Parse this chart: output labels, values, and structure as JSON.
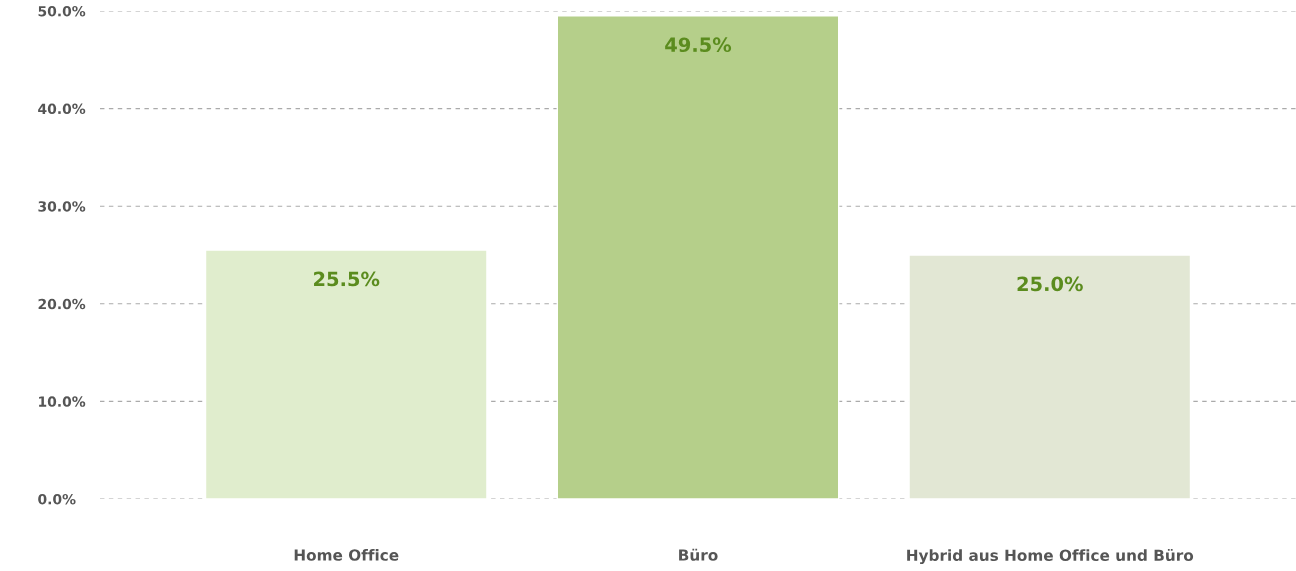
{
  "chart_data": {
    "type": "bar",
    "categories": [
      "Home Office",
      "Büro",
      "Hybrid aus Home Office und Büro"
    ],
    "values": [
      25.5,
      49.5,
      25.0
    ],
    "colors": [
      "#e0edcd",
      "#b5cf8a",
      "#e2e7d4"
    ],
    "value_labels": [
      "25.5%",
      "49.5%",
      "25.0%"
    ],
    "ylim": [
      0,
      50
    ],
    "yticks": [
      {
        "value": 0,
        "label": "0.0%"
      },
      {
        "value": 10,
        "label": "10.0%"
      },
      {
        "value": 20,
        "label": "20.0%"
      },
      {
        "value": 30,
        "label": "30.0%"
      },
      {
        "value": 40,
        "label": "40.0%"
      },
      {
        "value": 50,
        "label": "50.0%"
      }
    ],
    "grid": "y",
    "legend": false
  }
}
